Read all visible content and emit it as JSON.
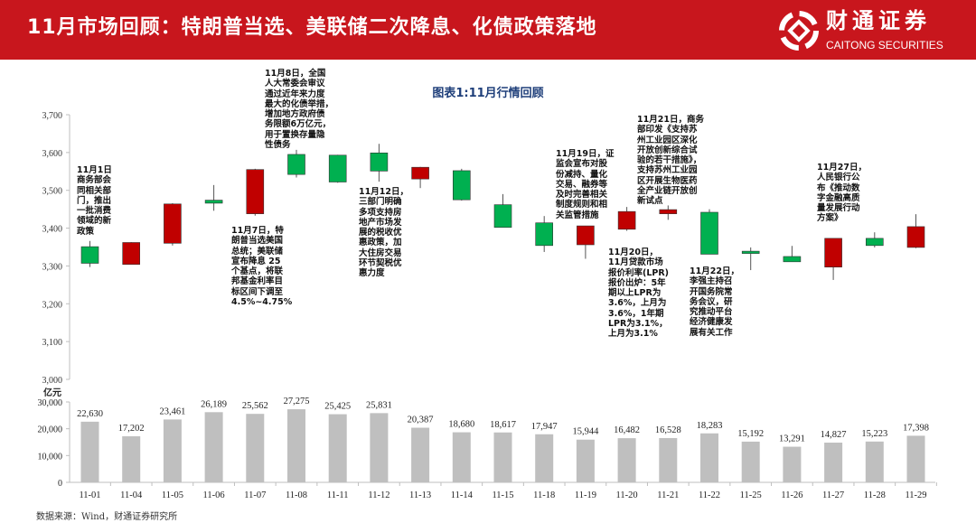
{
  "header": {
    "title": "11月市场回顾：特朗普当选、美联储二次降息、化债政策落地",
    "logo_cn": "财通证券",
    "logo_en": "CAITONG SECURITIES"
  },
  "colors": {
    "header": "#c8161d",
    "up": "#c00000",
    "down": "#00b050",
    "bar": "#bfbfbf"
  },
  "chart_data": [
    {
      "type": "candlestick",
      "title": "图表1:11月行情回顾",
      "ylim": [
        3000,
        3700
      ],
      "yticks": [
        "3,000",
        "3,100",
        "3,200",
        "3,300",
        "3,400",
        "3,500",
        "3,600",
        "3,700"
      ],
      "categories": [
        "11-01",
        "11-04",
        "11-05",
        "11-06",
        "11-07",
        "11-08",
        "11-11",
        "11-12",
        "11-13",
        "11-14",
        "11-15",
        "11-18",
        "11-19",
        "11-20",
        "11-21",
        "11-22",
        "11-25",
        "11-26",
        "11-27",
        "11-28",
        "11-29"
      ],
      "open": [
        3351,
        3304,
        3360,
        3474,
        3438,
        3595,
        3593,
        3599,
        3530,
        3552,
        3462,
        3414,
        3356,
        3397,
        3438,
        3442,
        3339,
        3325,
        3297,
        3373,
        3349
      ],
      "close": [
        3307,
        3362,
        3464,
        3466,
        3555,
        3542,
        3522,
        3551,
        3561,
        3475,
        3402,
        3354,
        3406,
        3444,
        3449,
        3331,
        3333,
        3311,
        3373,
        3354,
        3404
      ],
      "high": [
        3366,
        3363,
        3466,
        3514,
        3557,
        3607,
        3594,
        3623,
        3562,
        3557,
        3490,
        3432,
        3406,
        3456,
        3460,
        3450,
        3349,
        3353,
        3373,
        3389,
        3437
      ],
      "low": [
        3297,
        3304,
        3354,
        3446,
        3433,
        3534,
        3520,
        3523,
        3506,
        3473,
        3402,
        3337,
        3319,
        3393,
        3422,
        3331,
        3289,
        3311,
        3263,
        3349,
        3347
      ],
      "annotations": [
        {
          "date": "11-01",
          "text": "11月1日\n商务部会\n同相关部\n门，推出\n一批消费\n领域的新\n政策"
        },
        {
          "date": "11-08",
          "text": "11月8日，全国\n人大常委会审议\n通过近年来力度\n最大的化债举措，\n增加地方政府债\n务限额6万亿元，\n用于置换存量隐\n性债务"
        },
        {
          "date": "11-07",
          "text": "11月7日，特\n朗普当选美国\n总统；美联储\n宣布降息 25\n个基点，将联\n邦基金利率目\n标区间下调至\n4.5%~4.75%"
        },
        {
          "date": "11-12",
          "text": "11月12日，\n三部门明确\n多项支持房\n地产市场发\n展的税收优\n惠政策，加\n大住房交易\n环节契税优\n惠力度"
        },
        {
          "date": "11-19",
          "text": "11月19日，证\n监会宣布对股\n份减持、量化\n交易、融券等\n及时完善相关\n制度规则和相\n关监管措施"
        },
        {
          "date": "11-21",
          "text": "11月21日，商务\n部印发《支持苏\n州工业园区深化\n开放创新综合试\n验的若干措施》，\n支持苏州工业园\n区开展生物医药\n全产业链开放创\n新试点"
        },
        {
          "date": "11-20",
          "text": "11月20日，\n11月贷款市场\n报价利率(LPR)\n报价出炉：5年\n期以上LPR为\n3.6%，上月为\n3.6%，1年期\nLPR为3.1%，\n上月为3.1%"
        },
        {
          "date": "11-22",
          "text": "11月22日，\n李强主持召\n开国务院常\n务会议，研\n究推动平台\n经济健康发\n展有关工作"
        },
        {
          "date": "11-27",
          "text": "11月27日，\n人民银行公\n布《推动数\n字金融高质\n量发展行动\n方案》"
        }
      ]
    },
    {
      "type": "bar",
      "ylabel": "亿元",
      "ylim": [
        0,
        30000
      ],
      "yticks": [
        "0",
        "10,000",
        "20,000",
        "30,000"
      ],
      "categories": [
        "11-01",
        "11-04",
        "11-05",
        "11-06",
        "11-07",
        "11-08",
        "11-11",
        "11-12",
        "11-13",
        "11-14",
        "11-15",
        "11-18",
        "11-19",
        "11-20",
        "11-21",
        "11-22",
        "11-25",
        "11-26",
        "11-27",
        "11-28",
        "11-29"
      ],
      "values": [
        22630,
        17202,
        23461,
        26189,
        25562,
        27275,
        25425,
        25831,
        20387,
        18680,
        18617,
        17947,
        15944,
        16482,
        16528,
        18283,
        15192,
        13291,
        14827,
        15223,
        17398
      ],
      "labels": [
        "22,630",
        "17,202",
        "23,461",
        "26,189",
        "25,562",
        "27,275",
        "25,425",
        "25,831",
        "20,387",
        "18,680",
        "18,617",
        "17,947",
        "15,944",
        "16,482",
        "16,528",
        "18,283",
        "15,192",
        "13,291",
        "14,827",
        "15,223",
        "17,398"
      ]
    }
  ],
  "footer": {
    "source": "数据来源：Wind，财通证券研究所"
  }
}
